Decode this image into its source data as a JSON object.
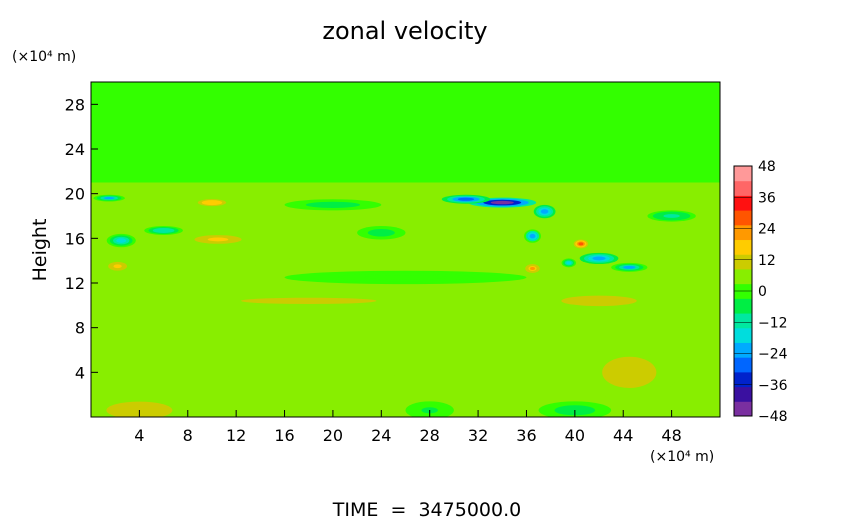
{
  "chart_data": {
    "type": "heatmap",
    "title": "zonal velocity",
    "xlabel": "",
    "ylabel": "Height",
    "x_unit": "(×10⁴ m)",
    "y_unit": "(×10⁴ m)",
    "footer": "TIME  =  3475000.0",
    "xlim": [
      0,
      52
    ],
    "ylim": [
      0,
      30
    ],
    "x_ticks": [
      4,
      8,
      12,
      16,
      20,
      24,
      28,
      32,
      36,
      40,
      44,
      48
    ],
    "y_ticks": [
      4,
      8,
      12,
      16,
      20,
      24,
      28
    ],
    "colorbar": {
      "min": -48,
      "max": 48,
      "ticks": [
        48,
        36,
        24,
        12,
        0,
        -12,
        -24,
        -36,
        -48
      ],
      "colors": [
        "#7a2fa0",
        "#3a10a0",
        "#0022cc",
        "#0066ff",
        "#00aaff",
        "#00dddd",
        "#00e8a0",
        "#00ee44",
        "#33ff00",
        "#88ee00",
        "#cccc00",
        "#ffcc00",
        "#ff9900",
        "#ff5500",
        "#ff1111",
        "#ff6666",
        "#ff9999"
      ]
    },
    "background_value": 4,
    "features": [
      {
        "x": 34,
        "y": 19.2,
        "sx": 2.8,
        "sy": 0.45,
        "v": -46
      },
      {
        "x": 31,
        "y": 19.5,
        "sx": 2.0,
        "sy": 0.4,
        "v": -28
      },
      {
        "x": 37.5,
        "y": 18.4,
        "sx": 0.9,
        "sy": 0.6,
        "v": -24
      },
      {
        "x": 36.5,
        "y": 16.2,
        "sx": 0.7,
        "sy": 0.6,
        "v": -22
      },
      {
        "x": 42,
        "y": 14.2,
        "sx": 1.6,
        "sy": 0.5,
        "v": -24
      },
      {
        "x": 44.5,
        "y": 13.4,
        "sx": 1.5,
        "sy": 0.4,
        "v": -20
      },
      {
        "x": 39.5,
        "y": 13.8,
        "sx": 0.6,
        "sy": 0.4,
        "v": -18
      },
      {
        "x": 2.5,
        "y": 15.8,
        "sx": 1.2,
        "sy": 0.6,
        "v": -18
      },
      {
        "x": 6,
        "y": 16.7,
        "sx": 1.6,
        "sy": 0.4,
        "v": -14
      },
      {
        "x": 1.5,
        "y": 19.6,
        "sx": 1.3,
        "sy": 0.3,
        "v": -20
      },
      {
        "x": 20,
        "y": 19.0,
        "sx": 4.0,
        "sy": 0.5,
        "v": -8
      },
      {
        "x": 24,
        "y": 16.5,
        "sx": 2.0,
        "sy": 0.6,
        "v": -8
      },
      {
        "x": 48,
        "y": 18.0,
        "sx": 2.0,
        "sy": 0.5,
        "v": -10
      },
      {
        "x": 10,
        "y": 19.2,
        "sx": 1.5,
        "sy": 0.4,
        "v": 18
      },
      {
        "x": 40.5,
        "y": 15.5,
        "sx": 0.6,
        "sy": 0.4,
        "v": 30
      },
      {
        "x": 36.5,
        "y": 13.3,
        "sx": 0.6,
        "sy": 0.4,
        "v": 22
      },
      {
        "x": 10.5,
        "y": 15.9,
        "sx": 2.5,
        "sy": 0.5,
        "v": 16
      },
      {
        "x": 2.2,
        "y": 13.5,
        "sx": 1.0,
        "sy": 0.5,
        "v": 16
      },
      {
        "x": 42,
        "y": 10.4,
        "sx": 4.0,
        "sy": 0.6,
        "v": 14
      },
      {
        "x": 18,
        "y": 10.4,
        "sx": 10.0,
        "sy": 0.5,
        "v": 10
      },
      {
        "x": 15,
        "y": 14.0,
        "sx": 2.0,
        "sy": 0.6,
        "v": 8
      },
      {
        "x": 46,
        "y": 15.8,
        "sx": 2.5,
        "sy": 0.6,
        "v": 8
      },
      {
        "x": 44.5,
        "y": 4.0,
        "sx": 4.0,
        "sy": 2.5,
        "v": 10
      },
      {
        "x": 4,
        "y": 0.6,
        "sx": 3.5,
        "sy": 1.0,
        "v": 14
      },
      {
        "x": 26,
        "y": 5.0,
        "sx": 4.0,
        "sy": 2.5,
        "v": 8
      },
      {
        "x": 14,
        "y": 5.5,
        "sx": 4.0,
        "sy": 2.5,
        "v": 6
      },
      {
        "x": 40,
        "y": 0.6,
        "sx": 3.0,
        "sy": 0.8,
        "v": -6
      },
      {
        "x": 28,
        "y": 0.6,
        "sx": 2.0,
        "sy": 0.8,
        "v": -3
      },
      {
        "x": 26,
        "y": 12.5,
        "sx": 10.0,
        "sy": 0.6,
        "v": -2
      }
    ]
  }
}
